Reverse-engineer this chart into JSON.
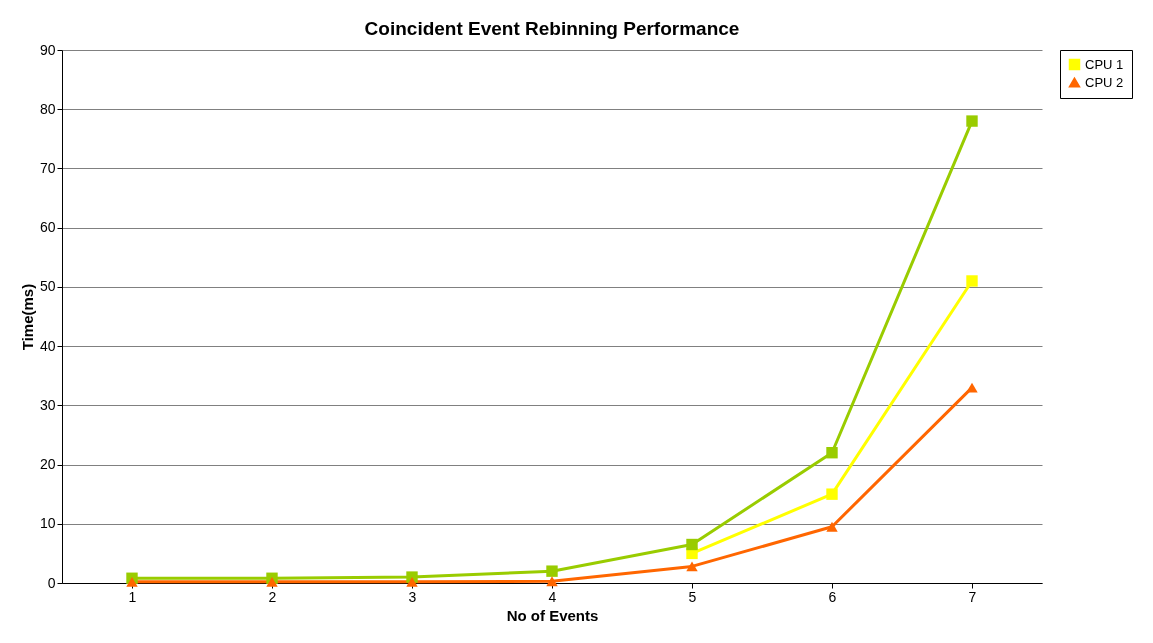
{
  "chart_data": {
    "type": "line",
    "title": "Coincident Event Rebinning  Performance",
    "xlabel": "No of Events",
    "ylabel": "Time(ms)",
    "categories": [
      "1",
      "2",
      "3",
      "4",
      "5",
      "6",
      "7"
    ],
    "series": [
      {
        "name": "CPU 1",
        "color": "#ffff00",
        "marker": "square",
        "values": [
          null,
          null,
          null,
          null,
          5,
          15,
          51
        ]
      },
      {
        "color": "#99cc00",
        "marker": "square",
        "values": [
          0.8,
          0.8,
          1,
          2,
          6.5,
          22,
          78
        ]
      },
      {
        "name": "CPU 2",
        "color": "#ff6600",
        "marker": "triangle",
        "values": [
          0.2,
          0.2,
          0.2,
          0.3,
          2.8,
          9.5,
          33
        ]
      }
    ],
    "ylim": [
      0,
      90
    ],
    "yticks": [
      0,
      10,
      20,
      30,
      40,
      50,
      60,
      70,
      80,
      90
    ],
    "grid": "y",
    "legend": "right",
    "line_style": "solid"
  }
}
